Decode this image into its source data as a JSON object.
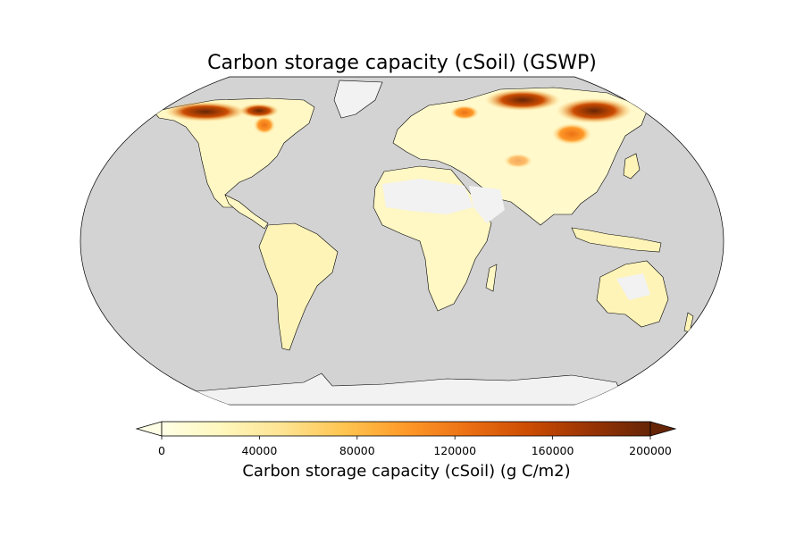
{
  "title": "Carbon storage capacity (cSoil) (GSWP)",
  "colorbar": {
    "label": "Carbon storage capacity (cSoil) (g C/m2)",
    "min": 0,
    "max": 200000,
    "extend": "both",
    "ticks": [
      "0",
      "40000",
      "80000",
      "120000",
      "160000",
      "200000"
    ],
    "tick_values": [
      0,
      40000,
      80000,
      120000,
      160000,
      200000
    ],
    "colormap": [
      "#ffffe5",
      "#fff7bc",
      "#fee391",
      "#fec44f",
      "#fe9929",
      "#ec7014",
      "#cc4c02",
      "#993404",
      "#662506"
    ]
  },
  "map": {
    "projection": "Robinson",
    "ocean_color": "#d3d3d3",
    "nodata_color": "#f2f2f2",
    "coastline_color": "#000000",
    "hotspots": [
      "Alaska / northern Canada",
      "Hudson Bay lowlands",
      "northern Siberia",
      "Russian Far East"
    ]
  }
}
